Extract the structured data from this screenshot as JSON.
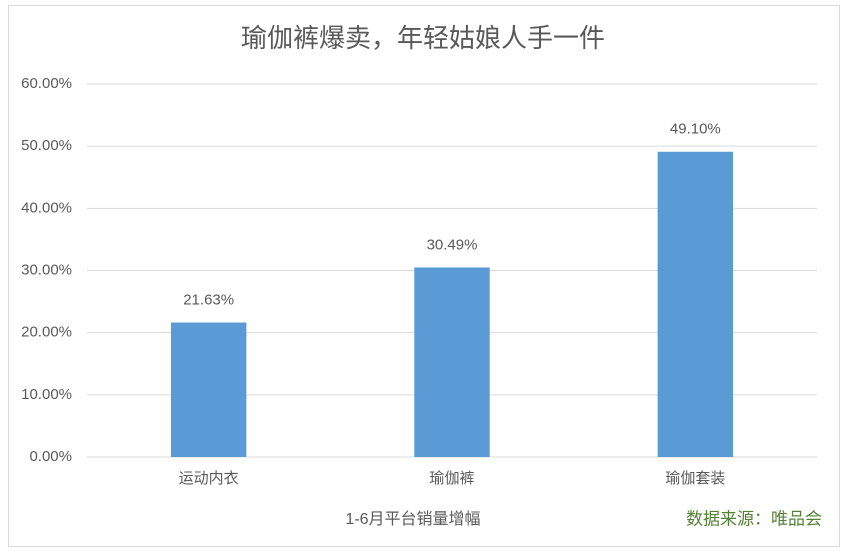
{
  "chart_data": {
    "type": "bar",
    "title": "瑜伽裤爆卖，年轻姑娘人手一件",
    "categories": [
      "运动内衣",
      "瑜伽裤",
      "瑜伽套装"
    ],
    "values": [
      21.63,
      30.49,
      49.1
    ],
    "value_labels": [
      "21.63%",
      "30.49%",
      "49.10%"
    ],
    "color": "#5b9bd5",
    "ylim": [
      0,
      60
    ],
    "yticks": [
      {
        "value": 0,
        "label": "0.00%"
      },
      {
        "value": 10,
        "label": "10.00%"
      },
      {
        "value": 20,
        "label": "20.00%"
      },
      {
        "value": 30,
        "label": "30.00%"
      },
      {
        "value": 40,
        "label": "40.00%"
      },
      {
        "value": 50,
        "label": "50.00%"
      },
      {
        "value": 60,
        "label": "60.00%"
      }
    ],
    "xlabel": "1-6月平台销量增幅",
    "source": "数据来源：唯品会",
    "grid": true
  }
}
